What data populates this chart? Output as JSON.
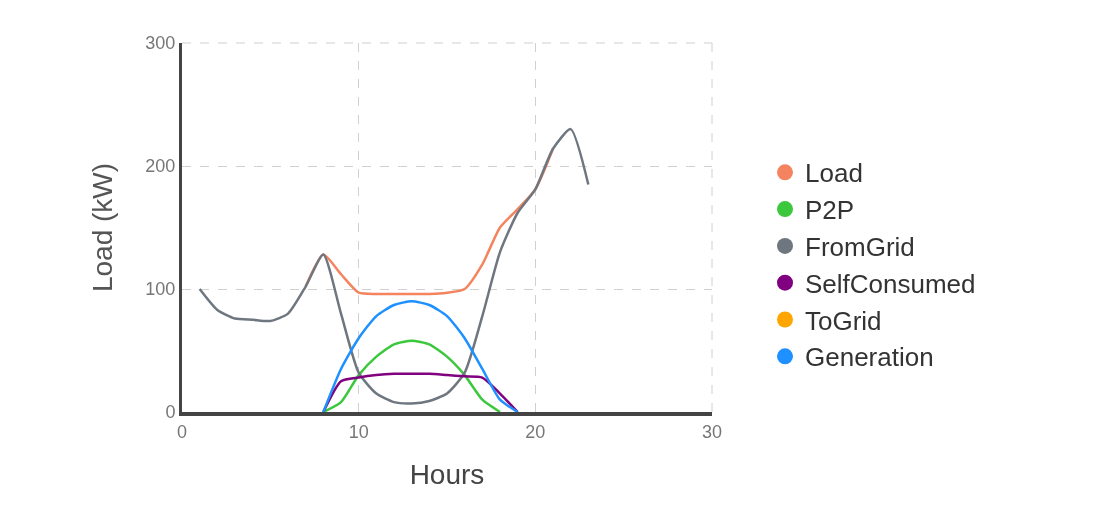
{
  "chart_data": {
    "type": "line",
    "xlabel": "Hours",
    "ylabel": "Load (kW)",
    "x": [
      1,
      2,
      3,
      4,
      5,
      6,
      7,
      8,
      9,
      10,
      11,
      12,
      13,
      14,
      15,
      16,
      17,
      18,
      19,
      20,
      21,
      22,
      23
    ],
    "xlim": [
      0,
      30
    ],
    "xticks": [
      0,
      10,
      20,
      30
    ],
    "ylim": [
      0,
      300
    ],
    "yticks": [
      0,
      100,
      200,
      300
    ],
    "grid": true,
    "legend": "right",
    "marker": "none",
    "line_style": "solid",
    "series": [
      {
        "name": "Load",
        "color": "#f4845f",
        "values": [
          null,
          null,
          null,
          null,
          null,
          null,
          102,
          128,
          112,
          97,
          96,
          96,
          96,
          96,
          97,
          100,
          120,
          150,
          165,
          181,
          214,
          null,
          null
        ]
      },
      {
        "name": "P2P",
        "color": "#3cc83c",
        "values": [
          null,
          null,
          null,
          null,
          null,
          null,
          null,
          0,
          8,
          30,
          45,
          55,
          58,
          55,
          45,
          30,
          10,
          0,
          null,
          null,
          null,
          null,
          null
        ]
      },
      {
        "name": "FromGrid",
        "color": "#6e7680",
        "values": [
          100,
          83,
          76,
          75,
          74,
          80,
          102,
          128,
          80,
          32,
          15,
          8,
          7,
          9,
          15,
          32,
          78,
          130,
          162,
          181,
          214,
          230,
          185
        ]
      },
      {
        "name": "SelfConsumed",
        "color": "#800080",
        "values": [
          null,
          null,
          null,
          null,
          null,
          null,
          null,
          0,
          25,
          28,
          30,
          31,
          31,
          31,
          30,
          29,
          28,
          15,
          0,
          null,
          null,
          null,
          null
        ]
      },
      {
        "name": "ToGrid",
        "color": "#ffa500",
        "values": [
          null,
          null,
          null,
          null,
          null,
          null,
          null,
          null,
          null,
          null,
          null,
          null,
          null,
          null,
          null,
          null,
          null,
          null,
          null,
          null,
          null,
          null,
          null
        ]
      },
      {
        "name": "Generation",
        "color": "#1e90ff",
        "values": [
          null,
          null,
          null,
          null,
          null,
          null,
          null,
          0,
          35,
          60,
          78,
          87,
          90,
          87,
          78,
          60,
          35,
          10,
          0,
          null,
          null,
          null,
          null
        ]
      }
    ]
  }
}
